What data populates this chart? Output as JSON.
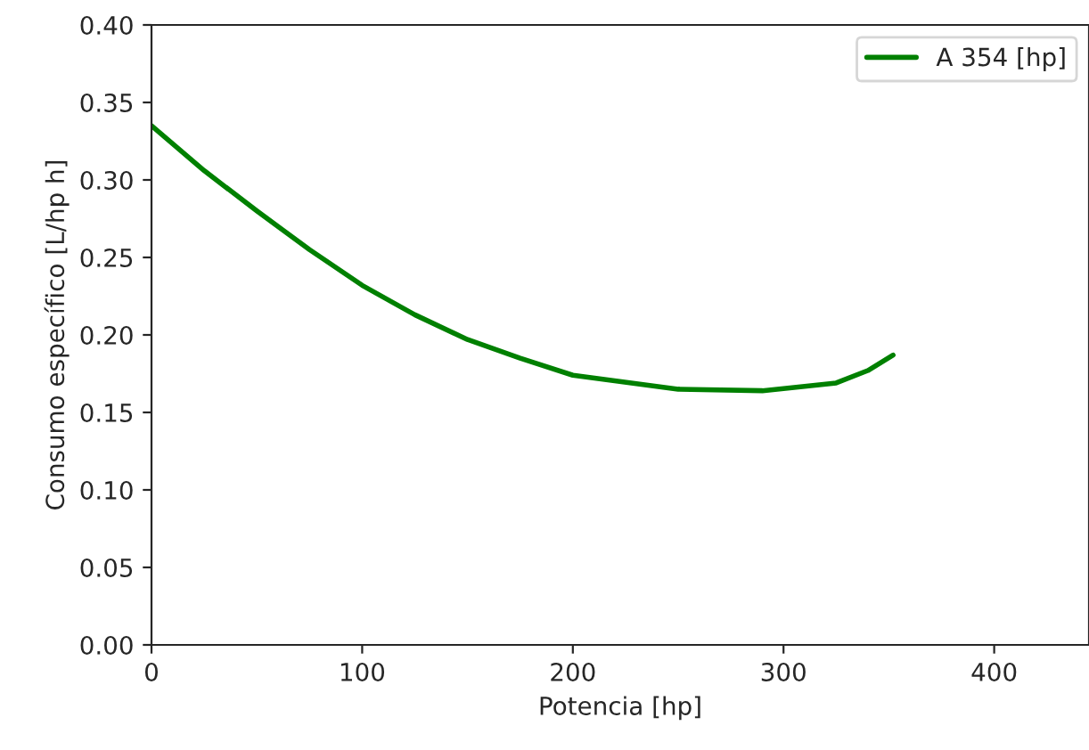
{
  "chart_data": {
    "type": "line",
    "xlabel": "Potencia [hp]",
    "ylabel": "Consumo específico [L/hp h]",
    "xlim": [
      0,
      445
    ],
    "ylim": [
      0,
      0.4
    ],
    "xticks": [
      0,
      100,
      200,
      300,
      400
    ],
    "yticks": [
      {
        "value": 0,
        "label": "0.00"
      },
      {
        "value": 0.05,
        "label": "0.05"
      },
      {
        "value": 0.1,
        "label": "0.10"
      },
      {
        "value": 0.15,
        "label": "0.15"
      },
      {
        "value": 0.2,
        "label": "0.20"
      },
      {
        "value": 0.25,
        "label": "0.25"
      },
      {
        "value": 0.3,
        "label": "0.30"
      },
      {
        "value": 0.35,
        "label": "0.35"
      },
      {
        "value": 0.4,
        "label": "0.40"
      }
    ],
    "grid": false,
    "legend": "top right",
    "series": [
      {
        "name": "A 354 [hp]",
        "color": "#008000",
        "x": [
          0,
          25,
          50,
          75,
          100,
          125,
          150,
          175,
          200,
          250,
          290,
          325,
          340,
          352
        ],
        "values": [
          0.335,
          0.306,
          0.28,
          0.255,
          0.232,
          0.213,
          0.197,
          0.185,
          0.174,
          0.165,
          0.164,
          0.169,
          0.177,
          0.187
        ]
      }
    ]
  }
}
